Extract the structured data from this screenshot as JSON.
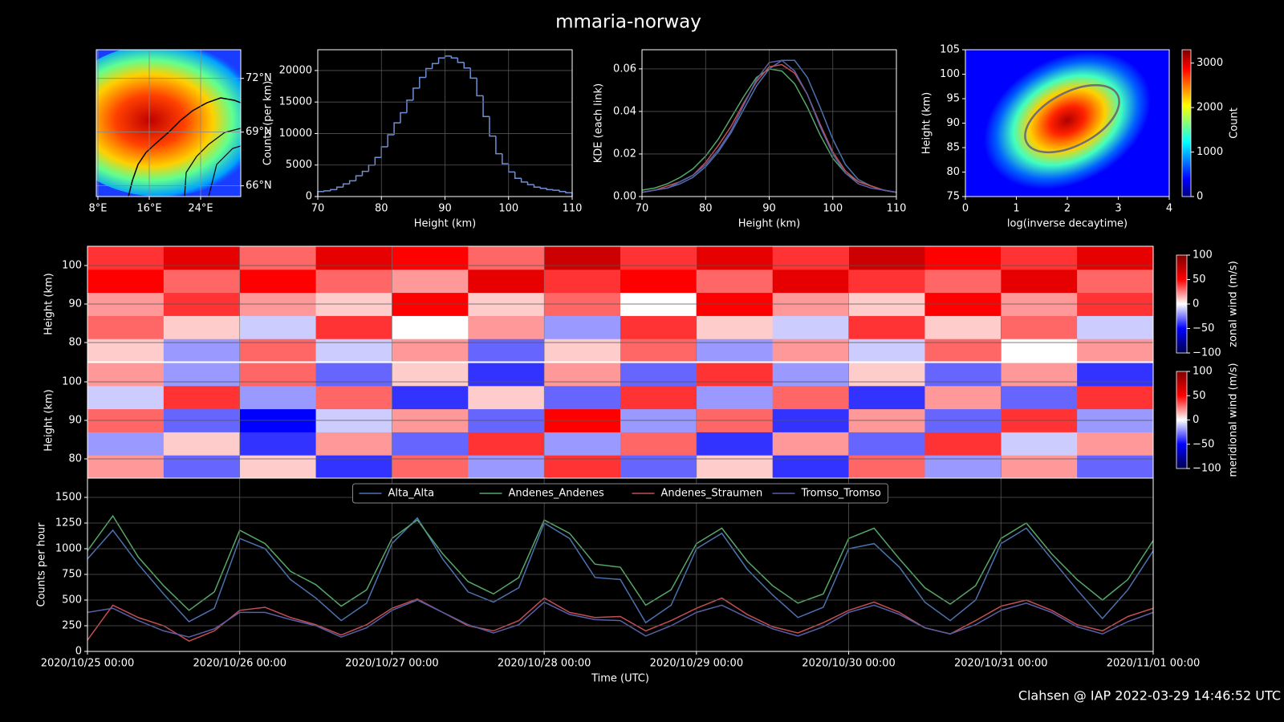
{
  "title": "mmaria-norway",
  "footer": "Clahsen @ IAP 2022-03-29 14:46:52 UTC",
  "chart_data": [
    {
      "type": "map",
      "xlim": [
        7.75,
        30.25
      ],
      "ylim": [
        65.4,
        73.6
      ],
      "xticks": [
        {
          "value": 8,
          "label": "8°E"
        },
        {
          "value": 16,
          "label": "16°E"
        },
        {
          "value": 24,
          "label": "24°E"
        }
      ],
      "yticks": [
        {
          "value": 72,
          "label": "72°N"
        },
        {
          "value": 69,
          "label": "69°N"
        },
        {
          "value": 66,
          "label": "66°N"
        }
      ],
      "grid": true
    },
    {
      "type": "histogram",
      "bins": [
        70,
        71,
        72,
        73,
        74,
        75,
        76,
        77,
        78,
        79,
        80,
        81,
        82,
        83,
        84,
        85,
        86,
        87,
        88,
        89,
        90,
        91,
        92,
        93,
        94,
        95,
        96,
        97,
        98,
        99,
        100,
        101,
        102,
        103,
        104,
        105,
        106,
        107,
        108,
        109,
        110
      ],
      "values": [
        800,
        900,
        1100,
        1500,
        2000,
        2500,
        3300,
        4000,
        5000,
        6200,
        7900,
        9800,
        11700,
        13300,
        15300,
        17200,
        18900,
        20300,
        21100,
        22000,
        22300,
        22000,
        21300,
        20400,
        18800,
        16000,
        12700,
        9600,
        6800,
        5200,
        3900,
        2900,
        2300,
        1900,
        1500,
        1300,
        1100,
        1000,
        800,
        600
      ],
      "color": "#6f8fd8",
      "xlim": [
        70,
        110
      ],
      "ylim": [
        0,
        23300
      ],
      "xticks": [
        70,
        80,
        90,
        100,
        110
      ],
      "yticks": [
        0,
        5000,
        10000,
        15000,
        20000
      ],
      "xlabel": "Height (km)",
      "ylabel": "Counts (per km)",
      "grid": true
    },
    {
      "type": "line",
      "x": [
        70,
        72,
        74,
        76,
        78,
        80,
        82,
        84,
        86,
        88,
        90,
        92,
        94,
        96,
        98,
        100,
        102,
        104,
        106,
        108,
        110
      ],
      "series": [
        {
          "name": "Alta_Alta",
          "color": "#4c72b0",
          "values": [
            0.002,
            0.003,
            0.004,
            0.006,
            0.009,
            0.014,
            0.021,
            0.03,
            0.041,
            0.052,
            0.06,
            0.064,
            0.064,
            0.056,
            0.042,
            0.027,
            0.015,
            0.008,
            0.005,
            0.003,
            0.002
          ]
        },
        {
          "name": "Andenes_Andenes",
          "color": "#55a868",
          "values": [
            0.003,
            0.004,
            0.006,
            0.009,
            0.013,
            0.019,
            0.027,
            0.037,
            0.047,
            0.056,
            0.06,
            0.059,
            0.053,
            0.042,
            0.029,
            0.018,
            0.011,
            0.007,
            0.005,
            0.003,
            0.002
          ]
        },
        {
          "name": "Andenes_Straumen",
          "color": "#c44e52",
          "values": [
            0.002,
            0.003,
            0.005,
            0.007,
            0.01,
            0.016,
            0.024,
            0.033,
            0.044,
            0.054,
            0.061,
            0.062,
            0.058,
            0.048,
            0.034,
            0.021,
            0.012,
            0.007,
            0.005,
            0.003,
            0.002
          ]
        },
        {
          "name": "Tromso_Tromso",
          "color": "#5a5fa8",
          "values": [
            0.002,
            0.003,
            0.004,
            0.007,
            0.01,
            0.015,
            0.022,
            0.031,
            0.043,
            0.055,
            0.063,
            0.064,
            0.059,
            0.048,
            0.033,
            0.02,
            0.011,
            0.006,
            0.004,
            0.003,
            0.002
          ]
        }
      ],
      "xlim": [
        70,
        110
      ],
      "ylim": [
        0,
        0.069
      ],
      "xticks": [
        70,
        80,
        90,
        100,
        110
      ],
      "yticks": [
        {
          "value": 0,
          "label": "0.00"
        },
        {
          "value": 0.02,
          "label": "0.02"
        },
        {
          "value": 0.04,
          "label": "0.04"
        },
        {
          "value": 0.06,
          "label": "0.06"
        }
      ],
      "xlabel": "Height (km)",
      "ylabel": "KDE (each link)",
      "grid": true
    },
    {
      "type": "hist2d",
      "xlim": [
        0,
        4
      ],
      "ylim": [
        75,
        105
      ],
      "xticks": [
        0,
        1,
        2,
        3,
        4
      ],
      "yticks": [
        75,
        80,
        85,
        90,
        95,
        100,
        105
      ],
      "xlabel": "log(inverse decaytime)",
      "ylabel": "Height (km)",
      "colormap": "jet",
      "clim": [
        0,
        3300
      ],
      "cticks": [
        0,
        1000,
        2000,
        3000
      ],
      "clabel": "Count"
    },
    {
      "type": "heatmap",
      "x": [
        "2020/10/25 00:00",
        "2020/10/25 12:00",
        "2020/10/26 00:00",
        "2020/10/26 12:00",
        "2020/10/27 00:00",
        "2020/10/27 12:00",
        "2020/10/28 00:00",
        "2020/10/28 12:00",
        "2020/10/29 00:00",
        "2020/10/29 12:00",
        "2020/10/30 00:00",
        "2020/10/30 12:00",
        "2020/10/31 00:00",
        "2020/10/31 12:00"
      ],
      "xlim": [
        "2020/10/25 00:00",
        "2020/11/01 00:00"
      ],
      "y": [
        75,
        81,
        87,
        93,
        99
      ],
      "ylim": [
        75,
        105
      ],
      "yticks": [
        80,
        90,
        100
      ],
      "values": [
        [
          10,
          -20,
          30,
          -10,
          20,
          -30,
          10,
          30,
          -20,
          20,
          -10,
          30,
          0,
          20
        ],
        [
          30,
          10,
          -10,
          40,
          0,
          20,
          -20,
          40,
          10,
          -10,
          40,
          10,
          30,
          -10
        ],
        [
          20,
          40,
          20,
          10,
          50,
          10,
          30,
          0,
          50,
          20,
          10,
          50,
          20,
          40
        ],
        [
          50,
          30,
          50,
          30,
          20,
          60,
          40,
          50,
          30,
          60,
          40,
          30,
          60,
          30
        ],
        [
          40,
          60,
          30,
          60,
          50,
          30,
          70,
          40,
          60,
          40,
          70,
          50,
          40,
          60
        ]
      ],
      "colormap": "seismic",
      "clim": [
        -100,
        100
      ],
      "cticks": [
        100,
        50,
        0,
        {
          "value": -50,
          "label": "−50"
        },
        {
          "value": -100,
          "label": "−100"
        }
      ],
      "clabel": "zonal wind (m/s)",
      "ylabel": "Height (km)",
      "grid": true
    },
    {
      "type": "heatmap",
      "x": [
        "2020/10/25 00:00",
        "2020/10/25 12:00",
        "2020/10/26 00:00",
        "2020/10/26 12:00",
        "2020/10/27 00:00",
        "2020/10/27 12:00",
        "2020/10/28 00:00",
        "2020/10/28 12:00",
        "2020/10/29 00:00",
        "2020/10/29 12:00",
        "2020/10/30 00:00",
        "2020/10/30 12:00",
        "2020/10/31 00:00",
        "2020/10/31 12:00"
      ],
      "xlim": [
        "2020/10/25 00:00",
        "2020/11/01 00:00"
      ],
      "y": [
        75,
        81,
        87,
        93,
        99
      ],
      "ylim": [
        75,
        105
      ],
      "yticks": [
        80,
        90,
        100
      ],
      "values": [
        [
          20,
          -30,
          10,
          -40,
          30,
          -20,
          40,
          -30,
          10,
          -40,
          30,
          -20,
          20,
          -30
        ],
        [
          -20,
          10,
          -40,
          20,
          -30,
          40,
          -20,
          30,
          -40,
          20,
          -30,
          40,
          -10,
          20
        ],
        [
          30,
          -30,
          -50,
          -10,
          20,
          -30,
          50,
          -20,
          30,
          -40,
          20,
          -30,
          40,
          -20
        ],
        [
          -10,
          40,
          -20,
          30,
          -40,
          10,
          -30,
          40,
          -20,
          30,
          -40,
          20,
          -30,
          40
        ],
        [
          20,
          -20,
          30,
          -30,
          10,
          -40,
          20,
          -30,
          40,
          -20,
          10,
          -30,
          20,
          -40
        ]
      ],
      "colormap": "seismic",
      "clim": [
        -100,
        100
      ],
      "cticks": [
        100,
        50,
        0,
        {
          "value": -50,
          "label": "−50"
        },
        {
          "value": -100,
          "label": "−100"
        }
      ],
      "clabel": "meridional wind (m/s)",
      "ylabel": "Height (km)",
      "grid": true
    },
    {
      "type": "line",
      "x": [
        "2020/10/25 00:00",
        "2020/10/25 04:00",
        "2020/10/25 08:00",
        "2020/10/25 12:00",
        "2020/10/25 16:00",
        "2020/10/25 20:00",
        "2020/10/26 00:00",
        "2020/10/26 04:00",
        "2020/10/26 08:00",
        "2020/10/26 12:00",
        "2020/10/26 16:00",
        "2020/10/26 20:00",
        "2020/10/27 00:00",
        "2020/10/27 04:00",
        "2020/10/27 08:00",
        "2020/10/27 12:00",
        "2020/10/27 16:00",
        "2020/10/27 20:00",
        "2020/10/28 00:00",
        "2020/10/28 04:00",
        "2020/10/28 08:00",
        "2020/10/28 12:00",
        "2020/10/28 16:00",
        "2020/10/28 20:00",
        "2020/10/29 00:00",
        "2020/10/29 04:00",
        "2020/10/29 08:00",
        "2020/10/29 12:00",
        "2020/10/29 16:00",
        "2020/10/29 20:00",
        "2020/10/30 00:00",
        "2020/10/30 04:00",
        "2020/10/30 08:00",
        "2020/10/30 12:00",
        "2020/10/30 16:00",
        "2020/10/30 20:00",
        "2020/10/31 00:00",
        "2020/10/31 04:00",
        "2020/10/31 08:00",
        "2020/10/31 12:00",
        "2020/10/31 16:00",
        "2020/10/31 20:00",
        "2020/11/01 00:00"
      ],
      "series": [
        {
          "name": "Alta_Alta",
          "color": "#4c72b0",
          "values": [
            900,
            1180,
            850,
            560,
            290,
            420,
            1100,
            1000,
            700,
            520,
            300,
            470,
            1050,
            1300,
            900,
            580,
            480,
            620,
            1250,
            1100,
            720,
            700,
            280,
            450,
            1000,
            1150,
            800,
            550,
            330,
            430,
            1000,
            1050,
            820,
            480,
            300,
            500,
            1050,
            1200,
            900,
            600,
            320,
            600,
            980
          ]
        },
        {
          "name": "Andenes_Andenes",
          "color": "#55a868",
          "values": [
            980,
            1320,
            920,
            640,
            400,
            580,
            1180,
            1050,
            780,
            650,
            440,
            600,
            1100,
            1280,
            950,
            680,
            560,
            720,
            1280,
            1150,
            850,
            820,
            450,
            600,
            1050,
            1200,
            880,
            640,
            470,
            560,
            1100,
            1200,
            900,
            620,
            460,
            640,
            1100,
            1250,
            950,
            700,
            500,
            700,
            1080
          ]
        },
        {
          "name": "Andenes_Straumen",
          "color": "#c44e52",
          "values": [
            110,
            450,
            330,
            250,
            100,
            200,
            400,
            430,
            330,
            260,
            160,
            260,
            420,
            510,
            380,
            250,
            200,
            300,
            520,
            380,
            330,
            340,
            200,
            300,
            420,
            520,
            360,
            240,
            180,
            280,
            400,
            480,
            380,
            230,
            170,
            300,
            440,
            500,
            400,
            260,
            200,
            340,
            420
          ]
        },
        {
          "name": "Tromso_Tromso",
          "color": "#5a5fa8",
          "values": [
            380,
            420,
            300,
            200,
            140,
            220,
            380,
            380,
            310,
            250,
            140,
            230,
            400,
            500,
            380,
            260,
            180,
            260,
            480,
            360,
            310,
            300,
            150,
            250,
            380,
            450,
            330,
            220,
            150,
            240,
            380,
            450,
            360,
            230,
            170,
            260,
            400,
            470,
            380,
            240,
            170,
            290,
            380
          ]
        }
      ],
      "xlim": [
        "2020/10/25 00:00",
        "2020/11/01 00:00"
      ],
      "ylim": [
        0,
        1687.5
      ],
      "xticks": [
        "2020/10/25 00:00",
        "2020/10/26 00:00",
        "2020/10/27 00:00",
        "2020/10/28 00:00",
        "2020/10/29 00:00",
        "2020/10/30 00:00",
        "2020/10/31 00:00",
        "2020/11/01 00:00"
      ],
      "yticks": [
        0,
        250,
        500,
        750,
        1000,
        1250,
        1500
      ],
      "xlabel": "Time (UTC)",
      "ylabel": "Counts per hour",
      "legend": "upper center",
      "grid": true
    }
  ]
}
